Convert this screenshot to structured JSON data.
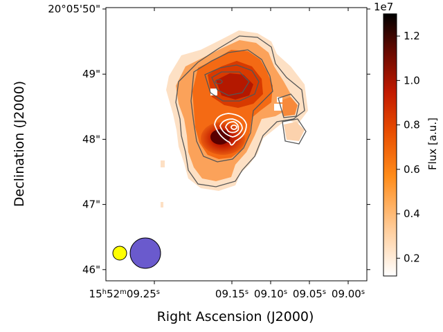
{
  "chart_data": {
    "type": "heatmap",
    "title": "",
    "xlabel": "Right Ascension (J2000)",
    "ylabel": "Declination (J2000)",
    "x_ticks": [
      {
        "label": "15h52m09.25s",
        "prefix": "15",
        "h": "h",
        "m": "52",
        "msym": "m",
        "sec": "09.25",
        "ssym": "s"
      },
      {
        "label": "09.15s",
        "sec": "09.15",
        "ssym": "s"
      },
      {
        "label": "09.10s",
        "sec": "09.10",
        "ssym": "s"
      },
      {
        "label": "09.05s",
        "sec": "09.05",
        "ssym": "s"
      },
      {
        "label": "09.00s",
        "sec": "09.00",
        "ssym": "s"
      }
    ],
    "y_ticks": [
      {
        "label": "20°05'50\"",
        "text": "20°05'50\""
      },
      {
        "label": "49\"",
        "text": "49\""
      },
      {
        "label": "48\"",
        "text": "48\""
      },
      {
        "label": "47\"",
        "text": "47\""
      },
      {
        "label": "46\"",
        "text": "46\""
      }
    ],
    "x_ticks_sec": [
      9.25,
      9.15,
      9.1,
      9.05,
      9.0
    ],
    "y_ticks_arcsec": [
      50,
      49,
      48,
      47,
      46
    ],
    "colorbar": {
      "label": "Flux [a.u.]",
      "scale_label": "1e7",
      "range": [
        0.12,
        1.3
      ],
      "ticks": [
        0.2,
        0.4,
        0.6,
        0.8,
        1.0,
        1.2
      ],
      "tick_labels": [
        "0.2",
        "0.4",
        "0.6",
        "0.8",
        "1.0",
        "1.2"
      ],
      "colormap": "gist_heat_r"
    },
    "beams": [
      {
        "name": "small beam",
        "color": "#ffff00"
      },
      {
        "name": "large beam",
        "color": "#6a5acd"
      }
    ],
    "contours": [
      {
        "name": "gray flux contours",
        "color": "#555555"
      },
      {
        "name": "white compact-source contours",
        "color": "#ffffff"
      }
    ]
  }
}
